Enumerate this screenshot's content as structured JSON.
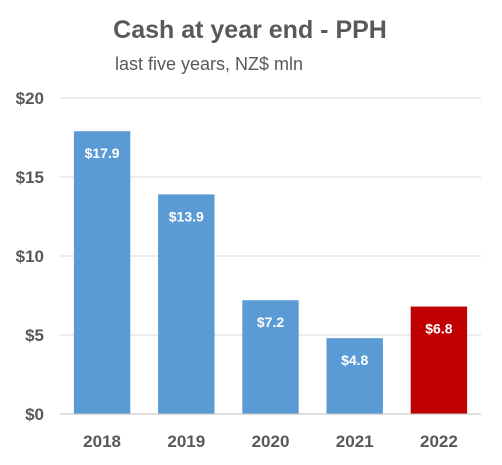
{
  "chart_data": {
    "type": "bar",
    "title": "Cash at year end - PPH",
    "subtitle": "last five years, NZ$ mln",
    "categories": [
      "2018",
      "2019",
      "2020",
      "2021",
      "2022"
    ],
    "values": [
      17.9,
      13.9,
      7.2,
      4.8,
      6.8
    ],
    "data_labels": [
      "$17.9",
      "$13.9",
      "$7.2",
      "$4.8",
      "$6.8"
    ],
    "bar_colors": [
      "#5b9bd5",
      "#5b9bd5",
      "#5b9bd5",
      "#5b9bd5",
      "#c00000"
    ],
    "ylim": [
      0,
      20
    ],
    "y_ticks": [
      0,
      5,
      10,
      15,
      20
    ],
    "y_tick_labels": [
      "$0",
      "$5",
      "$10",
      "$15",
      "$20"
    ],
    "grid": true,
    "legend": "none"
  }
}
